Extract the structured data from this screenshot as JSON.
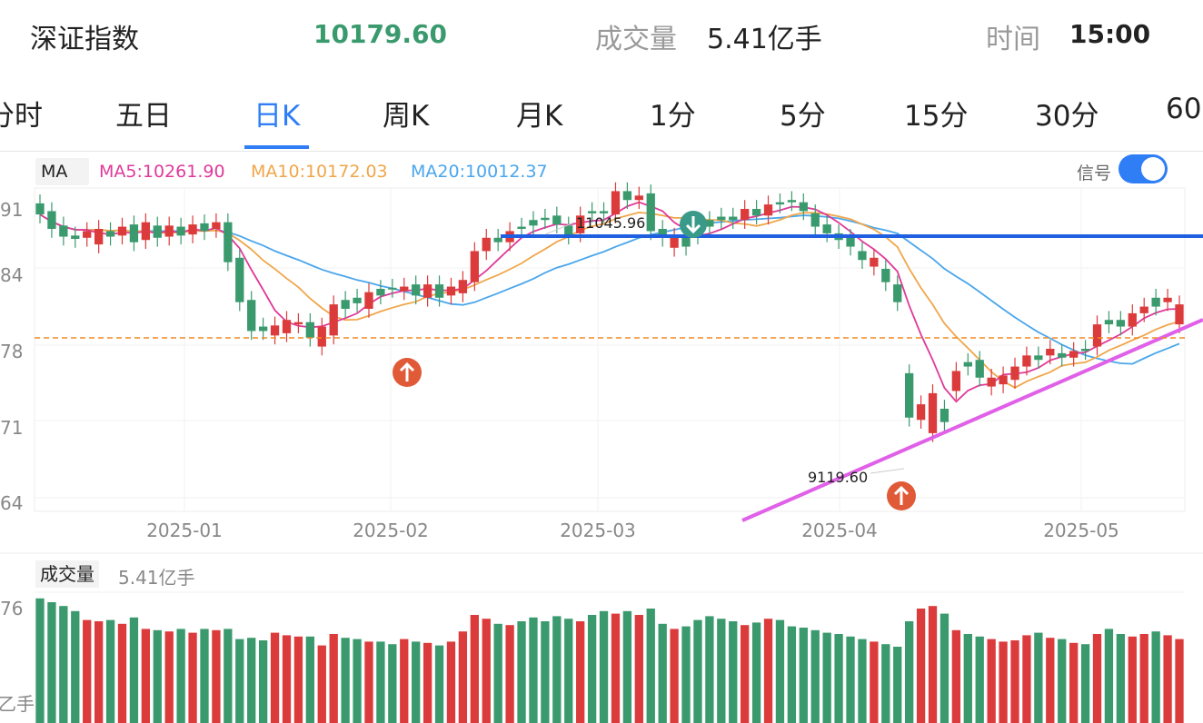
{
  "header": {
    "index_name": "深证指数",
    "index_value": "10179.60",
    "volume_label": "成交量",
    "volume_value": "5.41亿手",
    "time_label": "时间",
    "time_value": "15:00",
    "value_color": "#3a9a6e"
  },
  "tabs": [
    {
      "label": "分时"
    },
    {
      "label": "五日"
    },
    {
      "label": "日K",
      "active": true
    },
    {
      "label": "周K"
    },
    {
      "label": "月K"
    },
    {
      "label": "1分"
    },
    {
      "label": "5分"
    },
    {
      "label": "15分"
    },
    {
      "label": "30分"
    },
    {
      "label": "60"
    }
  ],
  "indicator_bar": {
    "tag": "MA",
    "ma5": "MA5:10261.90",
    "ma10": "MA10:10172.03",
    "ma20": "MA20:10012.37",
    "ma5_color": "#e0399a",
    "ma10_color": "#f0a64a",
    "ma20_color": "#4aa6ec",
    "signal_label": "信号",
    "signal_on": true
  },
  "price_axis": {
    "tick_labels": [
      "91",
      "84",
      "78",
      "71",
      "64"
    ]
  },
  "date_axis": {
    "tick_labels": [
      "2025-01",
      "2025-02",
      "2025-03",
      "2025-04",
      "2025-05"
    ]
  },
  "annotations": {
    "high_label": "11045.96",
    "low_label": "9119.60",
    "resistance_color": "#1f5fe0",
    "trendline_color": "#e060e8",
    "reference_line_color": "#f08a24"
  },
  "volume_panel": {
    "tag": "成交量",
    "value": "5.41亿手",
    "axis_labels": [
      "76",
      "乙手"
    ]
  },
  "colors": {
    "up": "#dc3b3b",
    "down": "#3a9a6e",
    "accent": "#2f7ef6"
  },
  "chart_data": {
    "type": "candlestick",
    "candles": [
      {
        "o": 91.5,
        "c": 90.5,
        "up": false,
        "v": 98
      },
      {
        "o": 90.8,
        "c": 89.2,
        "up": false,
        "v": 95
      },
      {
        "o": 89.5,
        "c": 88.5,
        "up": false,
        "v": 92
      },
      {
        "o": 88.6,
        "c": 88.3,
        "up": false,
        "v": 88
      },
      {
        "o": 88.4,
        "c": 89.0,
        "up": true,
        "v": 81
      },
      {
        "o": 87.8,
        "c": 89.2,
        "up": true,
        "v": 80
      },
      {
        "o": 89.0,
        "c": 88.5,
        "up": false,
        "v": 81
      },
      {
        "o": 88.6,
        "c": 89.4,
        "up": true,
        "v": 78
      },
      {
        "o": 89.6,
        "c": 88.0,
        "up": false,
        "v": 83
      },
      {
        "o": 88.2,
        "c": 89.8,
        "up": true,
        "v": 74
      },
      {
        "o": 89.5,
        "c": 88.4,
        "up": false,
        "v": 73
      },
      {
        "o": 88.5,
        "c": 89.5,
        "up": true,
        "v": 72
      },
      {
        "o": 89.4,
        "c": 88.6,
        "up": false,
        "v": 74
      },
      {
        "o": 88.7,
        "c": 89.6,
        "up": true,
        "v": 71
      },
      {
        "o": 89.7,
        "c": 89.0,
        "up": false,
        "v": 74
      },
      {
        "o": 89.2,
        "c": 89.8,
        "up": true,
        "v": 73
      },
      {
        "o": 89.8,
        "c": 86.2,
        "up": false,
        "v": 74
      },
      {
        "o": 86.6,
        "c": 82.6,
        "up": false,
        "v": 66
      },
      {
        "o": 82.8,
        "c": 80.0,
        "up": false,
        "v": 67
      },
      {
        "o": 80.4,
        "c": 80.0,
        "up": false,
        "v": 65
      },
      {
        "o": 79.6,
        "c": 80.5,
        "up": true,
        "v": 71
      },
      {
        "o": 79.8,
        "c": 81.0,
        "up": true,
        "v": 69
      },
      {
        "o": 80.6,
        "c": 80.8,
        "up": true,
        "v": 68
      },
      {
        "o": 80.8,
        "c": 79.4,
        "up": false,
        "v": 68
      },
      {
        "o": 78.6,
        "c": 80.4,
        "up": true,
        "v": 61
      },
      {
        "o": 79.6,
        "c": 82.4,
        "up": true,
        "v": 70
      },
      {
        "o": 82.0,
        "c": 82.8,
        "up": false,
        "v": 67
      },
      {
        "o": 82.5,
        "c": 83.0,
        "up": false,
        "v": 66
      },
      {
        "o": 82.0,
        "c": 83.5,
        "up": true,
        "v": 64
      },
      {
        "o": 83.2,
        "c": 83.8,
        "up": false,
        "v": 64
      },
      {
        "o": 83.8,
        "c": 83.9,
        "up": false,
        "v": 62
      },
      {
        "o": 83.6,
        "c": 84.0,
        "up": true,
        "v": 66
      },
      {
        "o": 84.2,
        "c": 83.2,
        "up": false,
        "v": 64
      },
      {
        "o": 83.0,
        "c": 84.2,
        "up": true,
        "v": 63
      },
      {
        "o": 84.2,
        "c": 83.0,
        "up": false,
        "v": 61
      },
      {
        "o": 83.2,
        "c": 84.0,
        "up": true,
        "v": 64
      },
      {
        "o": 83.4,
        "c": 84.6,
        "up": true,
        "v": 72
      },
      {
        "o": 84.4,
        "c": 87.2,
        "up": true,
        "v": 85
      },
      {
        "o": 87.2,
        "c": 88.4,
        "up": true,
        "v": 82
      },
      {
        "o": 88.4,
        "c": 88.0,
        "up": false,
        "v": 78
      },
      {
        "o": 88.0,
        "c": 89.0,
        "up": true,
        "v": 77
      },
      {
        "o": 89.2,
        "c": 89.4,
        "up": false,
        "v": 80
      },
      {
        "o": 89.5,
        "c": 90.0,
        "up": false,
        "v": 83
      },
      {
        "o": 90.0,
        "c": 90.2,
        "up": false,
        "v": 80
      },
      {
        "o": 90.4,
        "c": 89.6,
        "up": false,
        "v": 84
      },
      {
        "o": 89.5,
        "c": 88.6,
        "up": false,
        "v": 82
      },
      {
        "o": 88.8,
        "c": 90.4,
        "up": true,
        "v": 80
      },
      {
        "o": 90.6,
        "c": 90.8,
        "up": false,
        "v": 85
      },
      {
        "o": 90.8,
        "c": 90.6,
        "up": false,
        "v": 88
      },
      {
        "o": 90.5,
        "c": 92.6,
        "up": true,
        "v": 86
      },
      {
        "o": 92.6,
        "c": 91.8,
        "up": false,
        "v": 88
      },
      {
        "o": 91.8,
        "c": 92.2,
        "up": true,
        "v": 85
      },
      {
        "o": 92.4,
        "c": 89.0,
        "up": false,
        "v": 90
      },
      {
        "o": 89.2,
        "c": 88.4,
        "up": false,
        "v": 78
      },
      {
        "o": 88.5,
        "c": 87.5,
        "up": true,
        "v": 74
      },
      {
        "o": 87.6,
        "c": 88.6,
        "up": false,
        "v": 76
      },
      {
        "o": 88.6,
        "c": 89.4,
        "up": false,
        "v": 81
      },
      {
        "o": 89.4,
        "c": 90.0,
        "up": false,
        "v": 84
      },
      {
        "o": 90.0,
        "c": 90.3,
        "up": false,
        "v": 82
      },
      {
        "o": 90.3,
        "c": 90.0,
        "up": false,
        "v": 80
      },
      {
        "o": 90.0,
        "c": 91.0,
        "up": true,
        "v": 77
      },
      {
        "o": 91.0,
        "c": 90.4,
        "up": false,
        "v": 79
      },
      {
        "o": 90.4,
        "c": 91.4,
        "up": true,
        "v": 82
      },
      {
        "o": 91.4,
        "c": 91.6,
        "up": false,
        "v": 81
      },
      {
        "o": 91.8,
        "c": 91.6,
        "up": false,
        "v": 76
      },
      {
        "o": 91.6,
        "c": 90.8,
        "up": false,
        "v": 75
      },
      {
        "o": 90.6,
        "c": 89.4,
        "up": false,
        "v": 73
      },
      {
        "o": 89.6,
        "c": 88.8,
        "up": false,
        "v": 71
      },
      {
        "o": 88.8,
        "c": 88.2,
        "up": false,
        "v": 70
      },
      {
        "o": 88.4,
        "c": 87.6,
        "up": false,
        "v": 68
      },
      {
        "o": 87.2,
        "c": 86.4,
        "up": false,
        "v": 66
      },
      {
        "o": 86.6,
        "c": 85.8,
        "up": true,
        "v": 64
      },
      {
        "o": 85.6,
        "c": 84.4,
        "up": false,
        "v": 62
      },
      {
        "o": 84.2,
        "c": 82.6,
        "up": false,
        "v": 60
      },
      {
        "o": 76.2,
        "c": 72.2,
        "up": false,
        "v": 80
      },
      {
        "o": 72.0,
        "c": 73.4,
        "up": true,
        "v": 90
      },
      {
        "o": 70.8,
        "c": 74.4,
        "up": true,
        "v": 92
      },
      {
        "o": 73.0,
        "c": 71.8,
        "up": false,
        "v": 86
      },
      {
        "o": 74.6,
        "c": 76.4,
        "up": true,
        "v": 73
      },
      {
        "o": 76.8,
        "c": 77.2,
        "up": false,
        "v": 70
      },
      {
        "o": 77.4,
        "c": 75.8,
        "up": false,
        "v": 68
      },
      {
        "o": 75.8,
        "c": 75.0,
        "up": true,
        "v": 66
      },
      {
        "o": 75.2,
        "c": 76.0,
        "up": true,
        "v": 64
      },
      {
        "o": 75.6,
        "c": 76.8,
        "up": true,
        "v": 65
      },
      {
        "o": 76.8,
        "c": 77.8,
        "up": true,
        "v": 69
      },
      {
        "o": 77.4,
        "c": 77.8,
        "up": false,
        "v": 71
      },
      {
        "o": 77.8,
        "c": 78.4,
        "up": true,
        "v": 67
      },
      {
        "o": 78.0,
        "c": 77.6,
        "up": false,
        "v": 66
      },
      {
        "o": 77.6,
        "c": 78.2,
        "up": true,
        "v": 63
      },
      {
        "o": 78.2,
        "c": 78.4,
        "up": false,
        "v": 62
      },
      {
        "o": 78.6,
        "c": 80.6,
        "up": true,
        "v": 70
      },
      {
        "o": 80.6,
        "c": 81.0,
        "up": false,
        "v": 74
      },
      {
        "o": 81.0,
        "c": 80.4,
        "up": false,
        "v": 70
      },
      {
        "o": 80.4,
        "c": 81.6,
        "up": true,
        "v": 68
      },
      {
        "o": 81.6,
        "c": 82.2,
        "up": true,
        "v": 70
      },
      {
        "o": 82.2,
        "c": 83.0,
        "up": false,
        "v": 72
      },
      {
        "o": 83.0,
        "c": 82.6,
        "up": true,
        "v": 69
      },
      {
        "o": 82.4,
        "c": 80.6,
        "up": true,
        "v": 66
      }
    ]
  }
}
